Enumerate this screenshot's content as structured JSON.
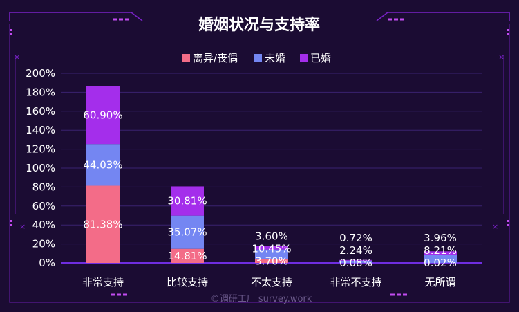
{
  "chart_data": {
    "type": "bar",
    "stacked": true,
    "title": "婚姻状况与支持率",
    "categories": [
      "非常支持",
      "比较支持",
      "不太支持",
      "非常不支持",
      "无所谓"
    ],
    "series": [
      {
        "name": "离异/丧偶",
        "color": "#f36c88",
        "values": [
          81.38,
          14.81,
          3.7,
          0.08,
          0.02
        ]
      },
      {
        "name": "未婚",
        "color": "#7486f2",
        "values": [
          44.03,
          35.07,
          10.45,
          2.24,
          8.21
        ]
      },
      {
        "name": "已婚",
        "color": "#a42eeb",
        "values": [
          60.9,
          30.81,
          3.6,
          0.72,
          3.96
        ]
      }
    ],
    "value_labels": [
      [
        "81.38%",
        "14.81%",
        "3.70%",
        "0.08%",
        "0.02%"
      ],
      [
        "44.03%",
        "35.07%",
        "10.45%",
        "2.24%",
        "8.21%"
      ],
      [
        "60.90%",
        "30.81%",
        "3.60%",
        "0.72%",
        "3.96%"
      ]
    ],
    "y_ticks": [
      "0%",
      "20%",
      "40%",
      "60%",
      "80%",
      "100%",
      "120%",
      "140%",
      "160%",
      "180%",
      "200%"
    ],
    "ylim": [
      0,
      200
    ],
    "grid": true,
    "legend_position": "top-center"
  },
  "watermark": "©调研工厂 survey.work",
  "colors": {
    "background": "#1b0c33",
    "frame": "#7a22c8",
    "grid": "#3a2270",
    "axis": "#6f2de0"
  }
}
